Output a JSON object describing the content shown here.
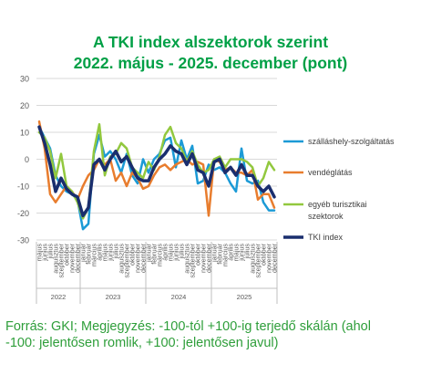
{
  "title": "A TKI index alszektorok szerint",
  "subtitle": "2022. május - 2025. december (pont)",
  "footnote_line1": "Forrás: GKI; Megjegyzés: -100-tól +100-ig terjedő skálán (ahol",
  "footnote_line2": "-100: jelentősen romlik, +100: jelentősen javul)",
  "chart_data": {
    "type": "line",
    "title": "A TKI index alszektorok szerint",
    "subtitle": "2022. május - 2025. december (pont)",
    "xlabel": "",
    "ylabel": "",
    "ylim": [
      -30,
      30
    ],
    "yticks": [
      -30,
      -20,
      -10,
      0,
      10,
      20,
      30
    ],
    "grid": true,
    "legend_position": "right",
    "categories": [
      "május",
      "június",
      "július",
      "augusztus",
      "szeptember",
      "október",
      "november",
      "december",
      "január",
      "február",
      "március",
      "április",
      "május",
      "június",
      "július",
      "augusztus",
      "szeptember",
      "október",
      "november",
      "december",
      "január",
      "február",
      "március",
      "április",
      "május",
      "június",
      "július",
      "augusztus",
      "szeptember",
      "október",
      "november",
      "december",
      "január",
      "február",
      "március",
      "április",
      "május",
      "június",
      "július",
      "augusztus",
      "szeptember",
      "október",
      "november",
      "december"
    ],
    "year_groups": [
      {
        "label": "2022",
        "start": 0,
        "end": 7
      },
      {
        "label": "2023",
        "start": 8,
        "end": 19
      },
      {
        "label": "2024",
        "start": 20,
        "end": 31
      },
      {
        "label": "2025",
        "start": 32,
        "end": 43
      }
    ],
    "series": [
      {
        "name": "szálláshely-szolgáltatás",
        "color": "#1b9ad6",
        "width": 2.5,
        "values": [
          12,
          8,
          4,
          -6,
          -10,
          -12,
          -13,
          -15,
          -26,
          -24,
          2,
          9,
          1,
          3,
          0,
          -5,
          2,
          -6,
          -9,
          0,
          -5,
          0,
          2,
          7,
          8,
          -3,
          7,
          0,
          5,
          -9,
          -8,
          -2,
          -4,
          -3,
          -5,
          -9,
          -12,
          4,
          -8,
          -9,
          -8,
          -16,
          -19,
          -19
        ]
      },
      {
        "name": "vendéglátás",
        "color": "#e87d2e",
        "width": 2.5,
        "values": [
          14,
          4,
          -13,
          -16,
          -13,
          -10,
          -12,
          -15,
          -10,
          -6,
          -4,
          0,
          -2,
          0,
          -8,
          -5,
          -10,
          -5,
          -7,
          -11,
          -10,
          -6,
          -3,
          -2,
          -4,
          -2,
          -1,
          0,
          -2,
          -1,
          -2,
          -21,
          0,
          -1,
          -4,
          -3,
          -5,
          -5,
          -6,
          -4,
          -15,
          -13,
          -13,
          -18
        ]
      },
      {
        "name": "egyéb turisztikai szektorok",
        "color": "#92c83e",
        "width": 2.5,
        "values": [
          10,
          8,
          3,
          -7,
          2,
          -10,
          -12,
          -16,
          -22,
          -18,
          3,
          13,
          -6,
          1,
          2,
          6,
          4,
          -3,
          -5,
          -7,
          -1,
          -4,
          1,
          9,
          12,
          6,
          4,
          -1,
          3,
          -2,
          -5,
          -4,
          0,
          1,
          -3,
          0,
          0,
          0,
          -1,
          -3,
          -10,
          -7,
          -1,
          -4
        ]
      },
      {
        "name": "TKI index",
        "color": "#1a2e6e",
        "width": 3.5,
        "values": [
          12,
          6,
          -2,
          -12,
          -7,
          -11,
          -13,
          -14,
          -21,
          -18,
          -2,
          0,
          -4,
          0,
          3,
          -1,
          1,
          -3,
          -7,
          -8,
          -8,
          -3,
          0,
          2,
          5,
          3,
          2,
          -2,
          2,
          -4,
          -5,
          -10,
          -1,
          0,
          -5,
          -3,
          -6,
          -2,
          -6,
          -6,
          -10,
          -12,
          -10,
          -14
        ]
      }
    ]
  }
}
